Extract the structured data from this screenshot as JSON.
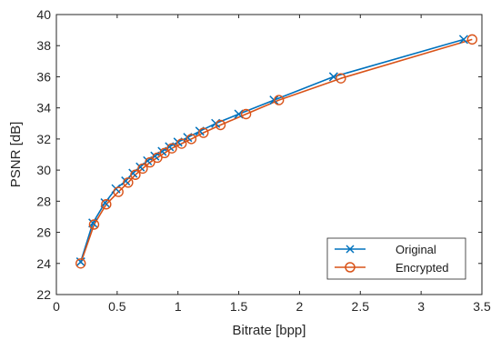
{
  "chart_data": {
    "type": "line",
    "xlabel": "Bitrate [bpp]",
    "ylabel": "PSNR [dB]",
    "xlim": [
      0,
      3.5
    ],
    "ylim": [
      22,
      40
    ],
    "xticks": [
      "0",
      "0.5",
      "1",
      "1.5",
      "2",
      "2.5",
      "3",
      "3.5"
    ],
    "yticks": [
      "22",
      "24",
      "26",
      "28",
      "30",
      "32",
      "34",
      "36",
      "38",
      "40"
    ],
    "grid": false,
    "legend_position": "bottom-right",
    "series": [
      {
        "name": "Original",
        "color": "#0072BD",
        "marker": "x",
        "x": [
          0.2,
          0.3,
          0.4,
          0.49,
          0.57,
          0.63,
          0.69,
          0.75,
          0.81,
          0.87,
          0.93,
          1.0,
          1.08,
          1.18,
          1.31,
          1.5,
          1.79,
          2.28,
          3.35
        ],
        "y": [
          24.1,
          26.6,
          27.9,
          28.8,
          29.3,
          29.8,
          30.2,
          30.6,
          30.9,
          31.2,
          31.5,
          31.8,
          32.1,
          32.5,
          33.0,
          33.6,
          34.5,
          36.0,
          38.4
        ]
      },
      {
        "name": "Encrypted",
        "color": "#D95319",
        "marker": "o",
        "x": [
          0.2,
          0.31,
          0.41,
          0.51,
          0.59,
          0.65,
          0.71,
          0.77,
          0.83,
          0.89,
          0.95,
          1.03,
          1.11,
          1.21,
          1.35,
          1.56,
          1.83,
          2.34,
          3.42
        ],
        "y": [
          24.0,
          26.5,
          27.8,
          28.6,
          29.2,
          29.7,
          30.1,
          30.5,
          30.8,
          31.1,
          31.4,
          31.7,
          32.0,
          32.4,
          32.9,
          33.6,
          34.5,
          35.9,
          38.4
        ]
      }
    ]
  }
}
